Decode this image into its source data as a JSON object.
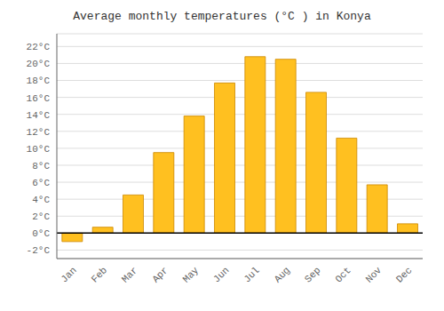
{
  "chart_data": {
    "type": "bar",
    "title": "Average monthly temperatures (°C ) in Konya",
    "categories": [
      "Jan",
      "Feb",
      "Mar",
      "Apr",
      "May",
      "Jun",
      "Jul",
      "Aug",
      "Sep",
      "Oct",
      "Nov",
      "Dec"
    ],
    "values": [
      -1.0,
      0.7,
      4.5,
      9.5,
      13.8,
      17.7,
      20.8,
      20.5,
      16.6,
      11.2,
      5.7,
      1.1
    ],
    "color": "#FFC020",
    "ylim": [
      -3.0,
      23.5
    ],
    "yticks": [
      {
        "value": -2,
        "label": "-2°C"
      },
      {
        "value": 0,
        "label": "0°C"
      },
      {
        "value": 2,
        "label": "2°C"
      },
      {
        "value": 4,
        "label": "4°C"
      },
      {
        "value": 6,
        "label": "6°C"
      },
      {
        "value": 8,
        "label": "8°C"
      },
      {
        "value": 10,
        "label": "10°C"
      },
      {
        "value": 12,
        "label": "12°C"
      },
      {
        "value": 14,
        "label": "14°C"
      },
      {
        "value": 16,
        "label": "16°C"
      },
      {
        "value": 18,
        "label": "18°C"
      },
      {
        "value": 20,
        "label": "20°C"
      },
      {
        "value": 22,
        "label": "22°C"
      }
    ],
    "grid": true
  }
}
